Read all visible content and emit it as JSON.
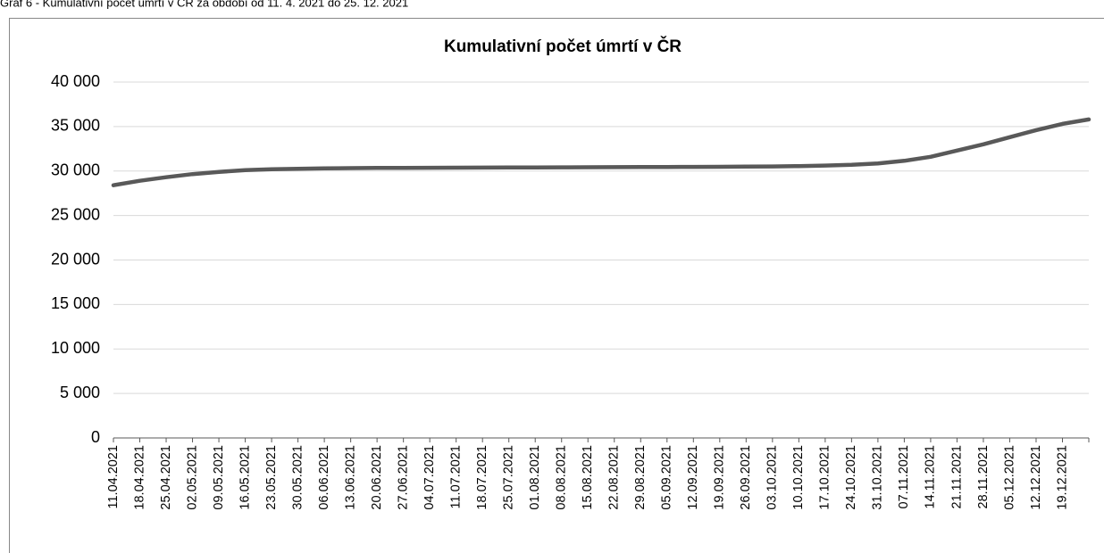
{
  "caption": "Graf 6 - Kumulativní počet úmrtí v ČR za období od 11. 4. 2021 do 25. 12. 2021",
  "chart_data": {
    "type": "line",
    "title": "Kumulativní počet úmrtí v ČR",
    "categories": [
      "11.04.2021",
      "18.04.2021",
      "25.04.2021",
      "02.05.2021",
      "09.05.2021",
      "16.05.2021",
      "23.05.2021",
      "30.05.2021",
      "06.06.2021",
      "13.06.2021",
      "20.06.2021",
      "27.06.2021",
      "04.07.2021",
      "11.07.2021",
      "18.07.2021",
      "25.07.2021",
      "01.08.2021",
      "08.08.2021",
      "15.08.2021",
      "22.08.2021",
      "29.08.2021",
      "05.09.2021",
      "12.09.2021",
      "19.09.2021",
      "26.09.2021",
      "03.10.2021",
      "10.10.2021",
      "17.10.2021",
      "24.10.2021",
      "31.10.2021",
      "07.11.2021",
      "14.11.2021",
      "21.11.2021",
      "28.11.2021",
      "05.12.2021",
      "12.12.2021",
      "19.12.2021",
      null
    ],
    "values": [
      28400,
      28900,
      29300,
      29650,
      29900,
      30100,
      30200,
      30250,
      30300,
      30330,
      30350,
      30360,
      30370,
      30380,
      30390,
      30400,
      30410,
      30420,
      30430,
      30440,
      30450,
      30460,
      30470,
      30480,
      30500,
      30520,
      30560,
      30620,
      30700,
      30850,
      31150,
      31600,
      32300,
      33000,
      33800,
      34600,
      35300,
      35800
    ],
    "color": "#595959",
    "ylim": [
      0,
      40000
    ],
    "yticks": [
      0,
      {
        "value": 5000,
        "label": "5 000"
      },
      {
        "value": 10000,
        "label": "10 000"
      },
      {
        "value": 15000,
        "label": "15 000"
      },
      {
        "value": 20000,
        "label": "20 000"
      },
      {
        "value": 25000,
        "label": "25 000"
      },
      {
        "value": 30000,
        "label": "30 000"
      },
      {
        "value": 35000,
        "label": "35 000"
      },
      {
        "value": 40000,
        "label": "40 000"
      }
    ],
    "grid": true
  }
}
